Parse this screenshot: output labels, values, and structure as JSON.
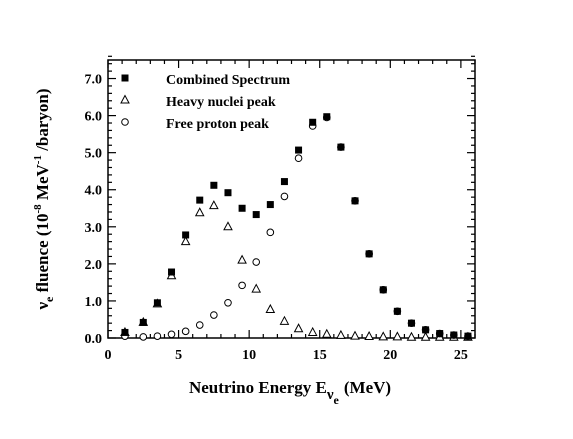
{
  "chart_data": {
    "type": "scatter",
    "x_axis": {
      "label_main": "Neutrino Energy E",
      "label_sub1": "ν",
      "label_sub2": "e",
      "label_unit": "(MeV)",
      "range": [
        0,
        26
      ],
      "ticks": [
        "0",
        "5",
        "10",
        "15",
        "20",
        "25"
      ]
    },
    "y_axis": {
      "label_nu": "ν",
      "label_sub": "e",
      "label_mid": " fluence (10",
      "label_exp1": "-8",
      "label_mev": " MeV",
      "label_exp2": "-1",
      "label_end": " /baryon)",
      "range": [
        0,
        7.5
      ],
      "ticks": [
        "0.0",
        "1.0",
        "2.0",
        "3.0",
        "4.0",
        "5.0",
        "6.0",
        "7.0"
      ]
    },
    "legend_position": "top-left",
    "series": [
      {
        "name": "Combined Spectrum",
        "marker": "filled-square",
        "x": [
          1.2,
          2.5,
          3.5,
          4.5,
          5.5,
          6.5,
          7.5,
          8.5,
          9.5,
          10.5,
          11.5,
          12.5,
          13.5,
          14.5,
          15.5,
          16.5,
          17.5,
          18.5,
          19.5,
          20.5,
          21.5,
          22.5,
          23.5,
          24.5,
          25.5
        ],
        "y": [
          0.15,
          0.42,
          0.95,
          1.78,
          2.78,
          3.72,
          4.12,
          3.92,
          3.5,
          3.33,
          3.6,
          4.22,
          5.07,
          5.82,
          5.97,
          5.15,
          3.7,
          2.27,
          1.3,
          0.72,
          0.4,
          0.22,
          0.12,
          0.08,
          0.05
        ]
      },
      {
        "name": "Heavy nuclei peak",
        "marker": "open-triangle",
        "x": [
          1.2,
          2.5,
          3.5,
          4.5,
          5.5,
          6.5,
          7.5,
          8.5,
          9.5,
          10.5,
          11.5,
          12.5,
          13.5,
          14.5,
          15.5,
          16.5,
          17.5,
          18.5,
          19.5,
          20.5,
          21.5,
          22.5,
          23.5,
          24.5,
          25.5
        ],
        "y": [
          0.15,
          0.42,
          0.92,
          1.68,
          2.6,
          3.38,
          3.57,
          3.0,
          2.1,
          1.32,
          0.77,
          0.45,
          0.25,
          0.15,
          0.1,
          0.07,
          0.05,
          0.04,
          0.03,
          0.03,
          0.02,
          0.02,
          0.02,
          0.02,
          0.02
        ]
      },
      {
        "name": "Free proton peak",
        "marker": "open-circle",
        "x": [
          1.2,
          2.5,
          3.5,
          4.5,
          5.5,
          6.5,
          7.5,
          8.5,
          9.5,
          10.5,
          11.5,
          12.5,
          13.5,
          14.5,
          15.5,
          16.5,
          17.5,
          18.5,
          19.5,
          20.5,
          21.5,
          22.5,
          23.5,
          24.5,
          25.5
        ],
        "y": [
          0.05,
          0.03,
          0.05,
          0.1,
          0.18,
          0.35,
          0.62,
          0.95,
          1.42,
          2.05,
          2.85,
          3.82,
          4.85,
          5.72,
          5.95,
          5.15,
          3.7,
          2.27,
          1.3,
          0.72,
          0.4,
          0.22,
          0.12,
          0.08,
          0.05
        ]
      }
    ]
  }
}
